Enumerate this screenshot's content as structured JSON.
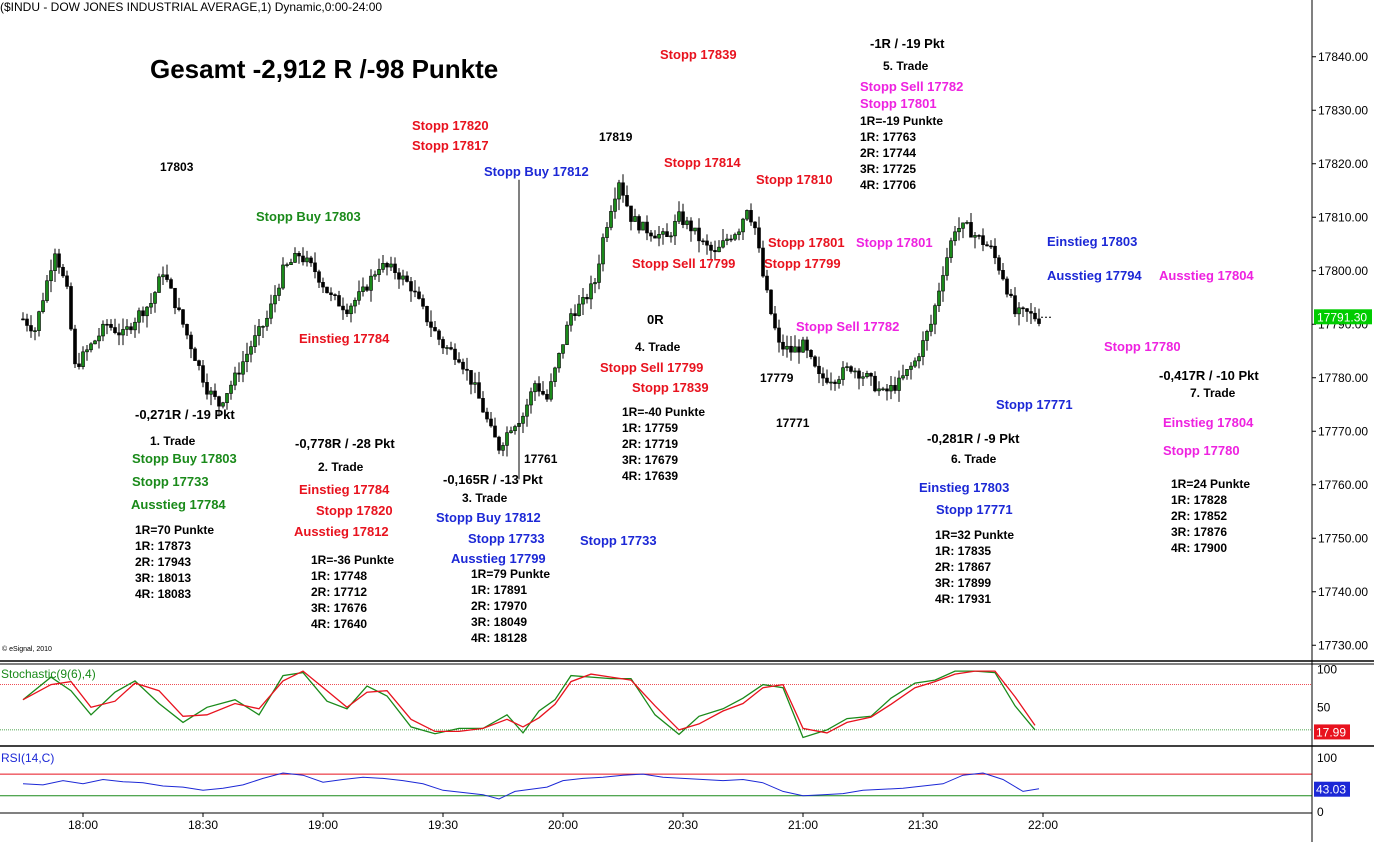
{
  "header": {
    "title": "($INDU - DOW JONES INDUSTRIAL AVERAGE,1) Dynamic,0:00-24:00",
    "copyright": "© eSignal, 2010"
  },
  "summary": "Gesamt -2,912 R /-98 Punkte",
  "colors": {
    "black": "#000000",
    "red": "#e8121e",
    "green": "#1a8a1a",
    "blue": "#1c28d6",
    "magenta": "#ee22e0",
    "last_price_bg": "#00cc00",
    "stoch_value_bg": "#e8121e",
    "rsi_value_bg": "#1c28d6"
  },
  "annotations": [
    {
      "text": "17803",
      "color": "black",
      "size": "sm"
    },
    {
      "text": "Stopp Buy 17803",
      "color": "green",
      "size": "md"
    },
    {
      "text": "Stopp 17820",
      "color": "red",
      "size": "md"
    },
    {
      "text": "Stopp 17817",
      "color": "red",
      "size": "md"
    },
    {
      "text": "17819",
      "color": "black",
      "size": "sm"
    },
    {
      "text": "Stopp Buy 17812",
      "color": "blue",
      "size": "md"
    },
    {
      "text": "Stopp 17839",
      "color": "red",
      "size": "md"
    },
    {
      "text": "Stopp 17814",
      "color": "red",
      "size": "md"
    },
    {
      "text": "Stopp 17810",
      "color": "red",
      "size": "md"
    },
    {
      "text": "-1R / -19 Pkt",
      "color": "black",
      "size": "md"
    },
    {
      "text": "5. Trade",
      "color": "black",
      "size": "sm"
    },
    {
      "text": "Stopp Sell 17782",
      "color": "magenta",
      "size": "md"
    },
    {
      "text": "Stopp 17801",
      "color": "magenta",
      "size": "md"
    },
    {
      "text": "1R=-19 Punkte",
      "color": "black",
      "size": "xs"
    },
    {
      "text": "1R: 17763",
      "color": "black",
      "size": "xs"
    },
    {
      "text": "2R: 17744",
      "color": "black",
      "size": "xs"
    },
    {
      "text": "3R: 17725",
      "color": "black",
      "size": "xs"
    },
    {
      "text": "4R: 17706",
      "color": "black",
      "size": "xs"
    },
    {
      "text": "Stopp 17801",
      "color": "red",
      "size": "md"
    },
    {
      "text": "Stopp 17801",
      "color": "magenta",
      "size": "md"
    },
    {
      "text": "Stopp Sell 17799",
      "color": "red",
      "size": "md"
    },
    {
      "text": "Stopp 17799",
      "color": "red",
      "size": "md"
    },
    {
      "text": "Einstieg 17803",
      "color": "blue",
      "size": "md"
    },
    {
      "text": "Ausstieg 17794",
      "color": "blue",
      "size": "md"
    },
    {
      "text": "Ausstieg 17804",
      "color": "magenta",
      "size": "md"
    },
    {
      "text": "Einstieg 17784",
      "color": "red",
      "size": "md"
    },
    {
      "text": "0R",
      "color": "black",
      "size": "md"
    },
    {
      "text": "4. Trade",
      "color": "black",
      "size": "sm"
    },
    {
      "text": "Stopp Sell 17799",
      "color": "red",
      "size": "md"
    },
    {
      "text": "Stopp 17839",
      "color": "red",
      "size": "md"
    },
    {
      "text": "1R=-40 Punkte",
      "color": "black",
      "size": "xs"
    },
    {
      "text": "1R: 17759",
      "color": "black",
      "size": "xs"
    },
    {
      "text": "2R: 17719",
      "color": "black",
      "size": "xs"
    },
    {
      "text": "3R: 17679",
      "color": "black",
      "size": "xs"
    },
    {
      "text": "4R: 17639",
      "color": "black",
      "size": "xs"
    },
    {
      "text": "Stopp Sell 17782",
      "color": "magenta",
      "size": "md"
    },
    {
      "text": "17779",
      "color": "black",
      "size": "sm"
    },
    {
      "text": "17771",
      "color": "black",
      "size": "sm"
    },
    {
      "text": "Stopp 17780",
      "color": "magenta",
      "size": "md"
    },
    {
      "text": "Stopp 17771",
      "color": "blue",
      "size": "md"
    },
    {
      "text": "-0,417R / -10 Pkt",
      "color": "black",
      "size": "md"
    },
    {
      "text": "7. Trade",
      "color": "black",
      "size": "sm"
    },
    {
      "text": "Einstieg 17804",
      "color": "magenta",
      "size": "md"
    },
    {
      "text": "Stopp 17780",
      "color": "magenta",
      "size": "md"
    },
    {
      "text": "1R=24 Punkte",
      "color": "black",
      "size": "xs"
    },
    {
      "text": "1R: 17828",
      "color": "black",
      "size": "xs"
    },
    {
      "text": "2R: 17852",
      "color": "black",
      "size": "xs"
    },
    {
      "text": "3R: 17876",
      "color": "black",
      "size": "xs"
    },
    {
      "text": "4R: 17900",
      "color": "black",
      "size": "xs"
    },
    {
      "text": "-0,271R / -19 Pkt",
      "color": "black",
      "size": "md"
    },
    {
      "text": "1. Trade",
      "color": "black",
      "size": "sm"
    },
    {
      "text": "Stopp Buy 17803",
      "color": "green",
      "size": "md"
    },
    {
      "text": "Stopp 17733",
      "color": "green",
      "size": "md"
    },
    {
      "text": "Ausstieg 17784",
      "color": "green",
      "size": "md"
    },
    {
      "text": "1R=70 Punkte",
      "color": "black",
      "size": "xs"
    },
    {
      "text": "1R: 17873",
      "color": "black",
      "size": "xs"
    },
    {
      "text": "2R: 17943",
      "color": "black",
      "size": "xs"
    },
    {
      "text": "3R: 18013",
      "color": "black",
      "size": "xs"
    },
    {
      "text": "4R: 18083",
      "color": "black",
      "size": "xs"
    },
    {
      "text": "-0,778R / -28 Pkt",
      "color": "black",
      "size": "md"
    },
    {
      "text": "2. Trade",
      "color": "black",
      "size": "sm"
    },
    {
      "text": "Einstieg 17784",
      "color": "red",
      "size": "md"
    },
    {
      "text": "Stopp 17820",
      "color": "red",
      "size": "md"
    },
    {
      "text": "Ausstieg 17812",
      "color": "red",
      "size": "md"
    },
    {
      "text": "1R=-36 Punkte",
      "color": "black",
      "size": "xs"
    },
    {
      "text": "1R: 17748",
      "color": "black",
      "size": "xs"
    },
    {
      "text": "2R: 17712",
      "color": "black",
      "size": "xs"
    },
    {
      "text": "3R: 17676",
      "color": "black",
      "size": "xs"
    },
    {
      "text": "4R: 17640",
      "color": "black",
      "size": "xs"
    },
    {
      "text": "17761",
      "color": "black",
      "size": "sm"
    },
    {
      "text": "-0,165R / -13 Pkt",
      "color": "black",
      "size": "md"
    },
    {
      "text": "3. Trade",
      "color": "black",
      "size": "sm"
    },
    {
      "text": "Stopp Buy 17812",
      "color": "blue",
      "size": "md"
    },
    {
      "text": "Stopp 17733",
      "color": "blue",
      "size": "md"
    },
    {
      "text": "Ausstieg 17799",
      "color": "blue",
      "size": "md"
    },
    {
      "text": "1R=79 Punkte",
      "color": "black",
      "size": "xs"
    },
    {
      "text": "1R: 17891",
      "color": "black",
      "size": "xs"
    },
    {
      "text": "2R: 17970",
      "color": "black",
      "size": "xs"
    },
    {
      "text": "3R: 18049",
      "color": "black",
      "size": "xs"
    },
    {
      "text": "4R: 18128",
      "color": "black",
      "size": "xs"
    },
    {
      "text": "Stopp 17733",
      "color": "blue",
      "size": "md"
    },
    {
      "text": "-0,281R / -9 Pkt",
      "color": "black",
      "size": "md"
    },
    {
      "text": "6. Trade",
      "color": "black",
      "size": "sm"
    },
    {
      "text": "Einstieg 17803",
      "color": "blue",
      "size": "md"
    },
    {
      "text": "Stopp 17771",
      "color": "blue",
      "size": "md"
    },
    {
      "text": "1R=32 Punkte",
      "color": "black",
      "size": "xs"
    },
    {
      "text": "1R: 17835",
      "color": "black",
      "size": "xs"
    },
    {
      "text": "2R: 17867",
      "color": "black",
      "size": "xs"
    },
    {
      "text": "3R: 17899",
      "color": "black",
      "size": "xs"
    },
    {
      "text": "4R: 17931",
      "color": "black",
      "size": "xs"
    }
  ],
  "chart_data": [
    {
      "type": "candlestick",
      "title": "($INDU - DOW JONES INDUSTRIAL AVERAGE,1) Dynamic,0:00-24:00",
      "x_tick_labels": [
        "18:00",
        "18:30",
        "19:00",
        "19:30",
        "20:00",
        "20:30",
        "21:00",
        "21:30",
        "22:00"
      ],
      "y_tick_labels": [
        "17840.00",
        "17830.00",
        "17820.00",
        "17810.00",
        "17800.00",
        "17790.00",
        "17780.00",
        "17770.00",
        "17760.00",
        "17750.00",
        "17740.00",
        "17730.00"
      ],
      "ylim": [
        17725,
        17845
      ],
      "last_price": "17791.30",
      "path_points": [
        [
          "17:45",
          17791
        ],
        [
          "17:48",
          17789
        ],
        [
          "17:51",
          17798
        ],
        [
          "17:53",
          17804
        ],
        [
          "17:56",
          17796
        ],
        [
          "17:58",
          17782
        ],
        [
          "18:02",
          17786
        ],
        [
          "18:06",
          17790
        ],
        [
          "18:10",
          17788
        ],
        [
          "18:14",
          17792
        ],
        [
          "18:17",
          17794
        ],
        [
          "18:20",
          17800
        ],
        [
          "18:24",
          17792
        ],
        [
          "18:28",
          17784
        ],
        [
          "18:31",
          17778
        ],
        [
          "18:34",
          17775
        ],
        [
          "18:38",
          17780
        ],
        [
          "18:42",
          17786
        ],
        [
          "18:46",
          17791
        ],
        [
          "18:50",
          17800
        ],
        [
          "18:54",
          17803
        ],
        [
          "18:58",
          17800
        ],
        [
          "19:02",
          17795
        ],
        [
          "19:06",
          17793
        ],
        [
          "19:10",
          17796
        ],
        [
          "19:14",
          17801
        ],
        [
          "19:18",
          17800
        ],
        [
          "19:22",
          17797
        ],
        [
          "19:26",
          17791
        ],
        [
          "19:30",
          17786
        ],
        [
          "19:34",
          17784
        ],
        [
          "19:38",
          17778
        ],
        [
          "19:42",
          17770
        ],
        [
          "19:44",
          17767
        ],
        [
          "19:47",
          17771
        ],
        [
          "19:50",
          17773
        ],
        [
          "19:53",
          17779
        ],
        [
          "19:56",
          17776
        ],
        [
          "19:59",
          17784
        ],
        [
          "20:02",
          17792
        ],
        [
          "20:05",
          17794
        ],
        [
          "20:08",
          17798
        ],
        [
          "20:10",
          17806
        ],
        [
          "20:12",
          17812
        ],
        [
          "20:14",
          17817
        ],
        [
          "20:17",
          17810
        ],
        [
          "20:20",
          17808
        ],
        [
          "20:23",
          17807
        ],
        [
          "20:26",
          17806
        ],
        [
          "20:29",
          17810
        ],
        [
          "20:32",
          17808
        ],
        [
          "20:35",
          17805
        ],
        [
          "20:38",
          17803
        ],
        [
          "20:41",
          17806
        ],
        [
          "20:44",
          17808
        ],
        [
          "20:46",
          17812
        ],
        [
          "20:48",
          17808
        ],
        [
          "20:50",
          17799
        ],
        [
          "20:52",
          17792
        ],
        [
          "20:54",
          17786
        ],
        [
          "20:57",
          17785
        ],
        [
          "21:00",
          17786
        ],
        [
          "21:04",
          17780
        ],
        [
          "21:08",
          17780
        ],
        [
          "21:12",
          17782
        ],
        [
          "21:16",
          17780
        ],
        [
          "21:20",
          17777
        ],
        [
          "21:24",
          17779
        ],
        [
          "21:28",
          17783
        ],
        [
          "21:32",
          17790
        ],
        [
          "21:35",
          17800
        ],
        [
          "21:38",
          17808
        ],
        [
          "21:41",
          17808
        ],
        [
          "21:44",
          17806
        ],
        [
          "21:47",
          17804
        ],
        [
          "21:50",
          17799
        ],
        [
          "21:53",
          17792
        ],
        [
          "21:56",
          17792
        ],
        [
          "21:59",
          17791
        ]
      ]
    },
    {
      "type": "line",
      "title": "Stochastic(9(6),4)",
      "y_tick_labels": [
        "100",
        "50"
      ],
      "ylim": [
        0,
        110
      ],
      "reference_lines": [
        80,
        20
      ],
      "last_value": "17.99",
      "series": [
        {
          "color": "green",
          "x": [
            "17:45",
            "17:52",
            "17:57",
            "18:02",
            "18:08",
            "18:13",
            "18:19",
            "18:25",
            "18:31",
            "18:38",
            "18:44",
            "18:50",
            "18:55",
            "19:01",
            "19:06",
            "19:11",
            "19:16",
            "19:22",
            "19:28",
            "19:34",
            "19:40",
            "19:46",
            "19:50",
            "19:54",
            "19:58",
            "20:02",
            "20:07",
            "20:12",
            "20:17",
            "20:23",
            "20:29",
            "20:34",
            "20:40",
            "20:45",
            "20:50",
            "20:55",
            "21:00",
            "21:06",
            "21:11",
            "21:17",
            "21:22",
            "21:28",
            "21:33",
            "21:38",
            "21:43",
            "21:48",
            "21:53",
            "21:58"
          ],
          "values": [
            60,
            90,
            72,
            40,
            70,
            85,
            55,
            30,
            50,
            60,
            40,
            92,
            96,
            58,
            48,
            78,
            65,
            24,
            15,
            22,
            22,
            40,
            16,
            45,
            60,
            92,
            90,
            88,
            88,
            40,
            14,
            38,
            48,
            62,
            80,
            76,
            10,
            20,
            35,
            38,
            62,
            82,
            86,
            98,
            98,
            96,
            52,
            20
          ]
        },
        {
          "color": "red",
          "x": [
            "17:45",
            "17:52",
            "17:57",
            "18:02",
            "18:08",
            "18:13",
            "18:19",
            "18:25",
            "18:31",
            "18:38",
            "18:44",
            "18:50",
            "18:55",
            "19:01",
            "19:06",
            "19:11",
            "19:16",
            "19:22",
            "19:28",
            "19:34",
            "19:40",
            "19:46",
            "19:50",
            "19:54",
            "19:58",
            "20:02",
            "20:07",
            "20:12",
            "20:17",
            "20:23",
            "20:29",
            "20:34",
            "20:40",
            "20:45",
            "20:50",
            "20:55",
            "21:00",
            "21:06",
            "21:11",
            "21:17",
            "21:22",
            "21:28",
            "21:33",
            "21:38",
            "21:43",
            "21:48",
            "21:53",
            "21:58"
          ],
          "values": [
            60,
            80,
            84,
            50,
            58,
            82,
            72,
            38,
            40,
            55,
            48,
            85,
            98,
            72,
            50,
            70,
            72,
            34,
            18,
            18,
            22,
            34,
            24,
            36,
            54,
            84,
            94,
            90,
            86,
            52,
            20,
            28,
            45,
            55,
            76,
            80,
            22,
            16,
            30,
            37,
            54,
            76,
            84,
            94,
            98,
            98,
            64,
            26
          ]
        }
      ]
    },
    {
      "type": "line",
      "title": "RSI(14,C)",
      "y_tick_labels": [
        "100",
        "0"
      ],
      "ylim": [
        0,
        120
      ],
      "reference_lines": [
        70,
        30
      ],
      "last_value": "43.03",
      "series": [
        {
          "color": "blue",
          "x": [
            "17:45",
            "17:50",
            "17:55",
            "18:00",
            "18:05",
            "18:10",
            "18:15",
            "18:20",
            "18:25",
            "18:30",
            "18:35",
            "18:40",
            "18:45",
            "18:50",
            "18:55",
            "19:00",
            "19:05",
            "19:10",
            "19:15",
            "19:20",
            "19:25",
            "19:30",
            "19:35",
            "19:40",
            "19:44",
            "19:48",
            "19:52",
            "19:56",
            "20:00",
            "20:05",
            "20:10",
            "20:15",
            "20:20",
            "20:25",
            "20:30",
            "20:35",
            "20:40",
            "20:45",
            "20:50",
            "20:55",
            "21:00",
            "21:05",
            "21:10",
            "21:15",
            "21:20",
            "21:25",
            "21:30",
            "21:35",
            "21:40",
            "21:45",
            "21:50",
            "21:55",
            "21:59"
          ],
          "values": [
            52,
            50,
            58,
            52,
            60,
            56,
            54,
            48,
            46,
            40,
            44,
            50,
            62,
            72,
            68,
            55,
            60,
            64,
            62,
            58,
            52,
            40,
            36,
            32,
            24,
            38,
            42,
            46,
            58,
            62,
            64,
            68,
            70,
            64,
            62,
            60,
            58,
            60,
            54,
            38,
            30,
            32,
            34,
            40,
            42,
            44,
            48,
            52,
            68,
            72,
            60,
            38,
            43
          ]
        }
      ]
    }
  ]
}
